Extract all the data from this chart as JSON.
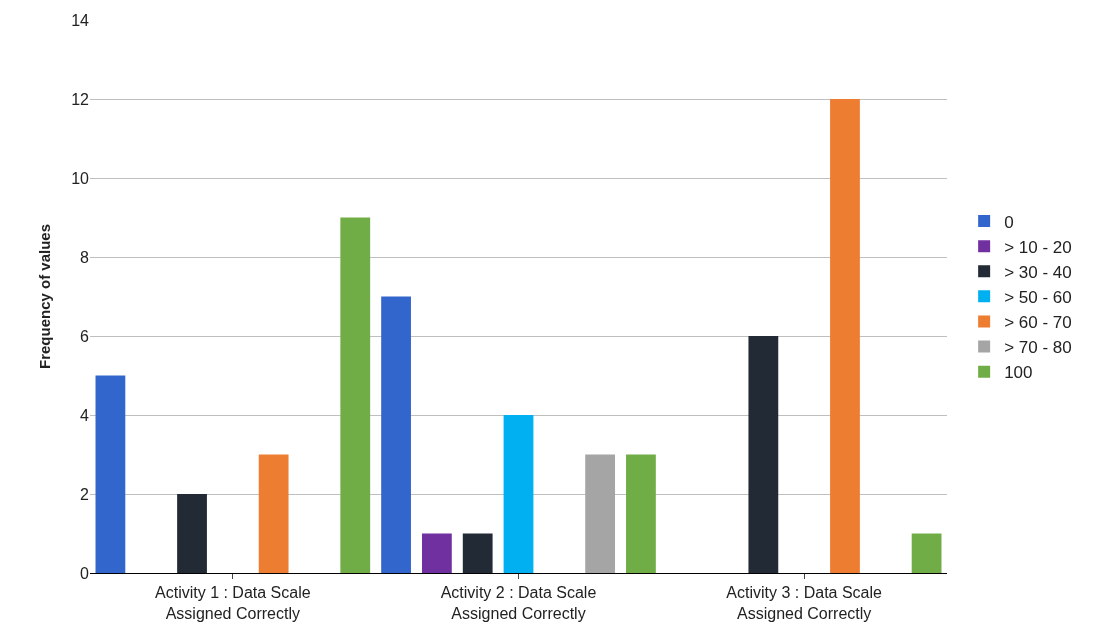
{
  "chart_data": {
    "type": "bar",
    "ylabel": "Frequency of values",
    "categories": [
      "Activity 1 : Data Scale Assigned Correctly",
      "Activity 2 : Data Scale Assigned Correctly",
      "Activity 3 : Data Scale Assigned Correctly"
    ],
    "series": [
      {
        "name": "0",
        "color": "#3366cc",
        "values": [
          5,
          7,
          0
        ]
      },
      {
        "name": "> 10 - 20",
        "color": "#7030a0",
        "values": [
          0,
          1,
          0
        ]
      },
      {
        "name": "> 30 - 40",
        "color": "#222a35",
        "values": [
          2,
          1,
          6
        ]
      },
      {
        "name": "> 50 - 60",
        "color": "#00b0f0",
        "values": [
          0,
          4,
          0
        ]
      },
      {
        "name": "> 60 - 70",
        "color": "#ed7d31",
        "values": [
          3,
          0,
          12
        ]
      },
      {
        "name": "> 70 - 80",
        "color": "#a5a5a5",
        "values": [
          0,
          3,
          0
        ]
      },
      {
        "name": "100",
        "color": "#70ad47",
        "values": [
          9,
          3,
          1
        ]
      }
    ],
    "ylim": [
      0,
      14
    ],
    "yticks": [
      0,
      2,
      4,
      6,
      8,
      10,
      12,
      14
    ],
    "grid": "y",
    "legend": "right"
  }
}
